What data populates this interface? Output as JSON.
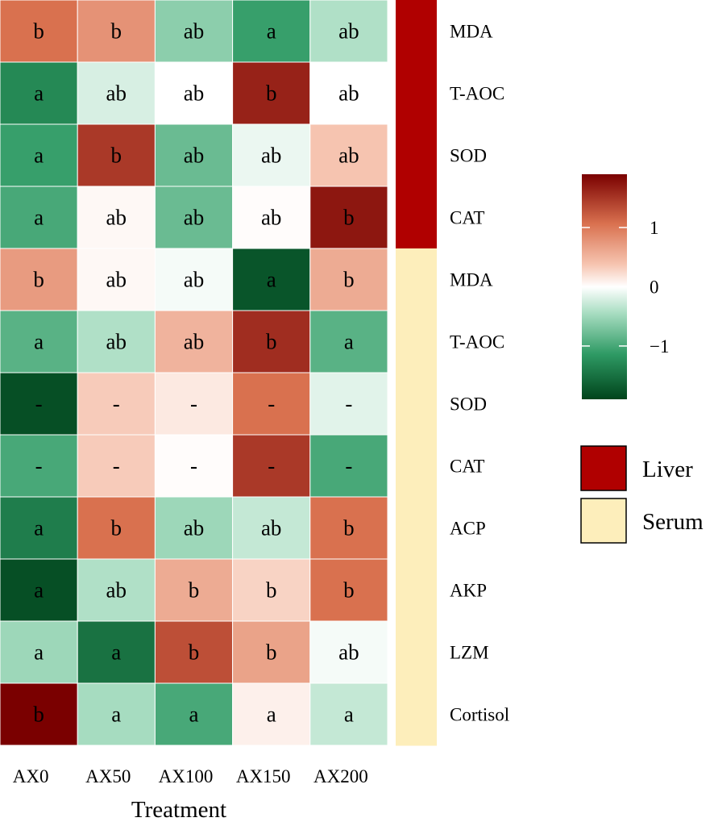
{
  "chart_data": {
    "type": "heatmap",
    "xlabel": "Treatment",
    "categories": [
      "AX0",
      "AX50",
      "AX100",
      "AX150",
      "AX200"
    ],
    "rows": [
      {
        "label": "MDA",
        "tissue": "Liver",
        "values": [
          0.9,
          0.7,
          -0.6,
          -1.1,
          -0.4
        ],
        "letters": [
          "b",
          "b",
          "ab",
          "a",
          "ab"
        ]
      },
      {
        "label": "T-AOC",
        "tissue": "Liver",
        "values": [
          -1.3,
          -0.2,
          0.0,
          1.6,
          0.0
        ],
        "letters": [
          "a",
          "ab",
          "ab",
          "b",
          "ab"
        ]
      },
      {
        "label": "SOD",
        "tissue": "Liver",
        "values": [
          -1.1,
          1.4,
          -0.8,
          -0.1,
          0.4
        ],
        "letters": [
          "a",
          "b",
          "ab",
          "ab",
          "ab"
        ]
      },
      {
        "label": "CAT",
        "tissue": "Liver",
        "values": [
          -1.0,
          0.05,
          -0.8,
          0.02,
          1.7
        ],
        "letters": [
          "a",
          "ab",
          "ab",
          "ab",
          "b"
        ]
      },
      {
        "label": "MDA",
        "tissue": "Serum",
        "values": [
          0.65,
          0.05,
          -0.05,
          -1.75,
          0.55
        ],
        "letters": [
          "b",
          "ab",
          "ab",
          "a",
          "b"
        ]
      },
      {
        "label": "T-AOC",
        "tissue": "Serum",
        "values": [
          -0.9,
          -0.4,
          0.5,
          1.5,
          -0.9
        ],
        "letters": [
          "a",
          "ab",
          "ab",
          "b",
          "a"
        ]
      },
      {
        "label": "SOD",
        "tissue": "Serum",
        "values": [
          -1.8,
          0.35,
          0.15,
          0.9,
          -0.15
        ],
        "letters": [
          "-",
          "-",
          "-",
          "-",
          "-"
        ]
      },
      {
        "label": "CAT",
        "tissue": "Serum",
        "values": [
          -1.0,
          0.35,
          0.02,
          1.4,
          -1.0
        ],
        "letters": [
          "-",
          "-",
          "-",
          "-",
          "-"
        ]
      },
      {
        "label": "ACP",
        "tissue": "Serum",
        "values": [
          -1.4,
          0.9,
          -0.5,
          -0.3,
          0.9
        ],
        "letters": [
          "a",
          "b",
          "ab",
          "ab",
          "b"
        ]
      },
      {
        "label": "AKP",
        "tissue": "Serum",
        "values": [
          -1.8,
          -0.4,
          0.55,
          0.3,
          0.9
        ],
        "letters": [
          "a",
          "ab",
          "b",
          "b",
          "b"
        ]
      },
      {
        "label": "LZM",
        "tissue": "Serum",
        "values": [
          -0.5,
          -1.5,
          1.2,
          0.6,
          -0.05
        ],
        "letters": [
          "a",
          "a",
          "b",
          "b",
          "ab"
        ]
      },
      {
        "label": "Cortisol",
        "tissue": "Serum",
        "values": [
          1.9,
          -0.45,
          -1.0,
          0.1,
          -0.3
        ],
        "letters": [
          "b",
          "a",
          "a",
          "a",
          "a"
        ]
      }
    ],
    "colorbar": {
      "ticks": [
        1,
        0,
        -1
      ],
      "tick_labels": [
        "1",
        "0",
        "−1"
      ],
      "range": [
        -1.9,
        1.9
      ],
      "colors": {
        "low": "#00441b",
        "mid": "#ffffff",
        "high": "#7a0000"
      }
    },
    "legend": {
      "items": [
        {
          "label": "Liver",
          "color": "#b00000"
        },
        {
          "label": "Serum",
          "color": "#fdeebb"
        }
      ]
    }
  }
}
